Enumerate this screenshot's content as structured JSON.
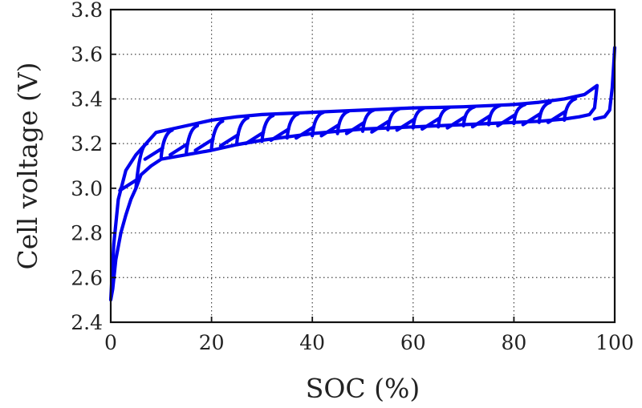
{
  "chart_data": {
    "type": "line",
    "xlabel": "SOC (%)",
    "ylabel": "Cell voltage (V)",
    "xlim": [
      0,
      100
    ],
    "ylim": [
      2.4,
      3.8
    ],
    "xticks": [
      "0",
      "20",
      "40",
      "60",
      "80",
      "100"
    ],
    "yticks": [
      "2.4",
      "2.6",
      "2.8",
      "3.0",
      "3.2",
      "3.4",
      "3.6",
      "3.8"
    ],
    "grid": true,
    "line_color": "#0000ee",
    "series": [
      {
        "description": "charge/discharge hysteresis trace (approximate)",
        "x": [
          0,
          0.6,
          1.5,
          3,
          5,
          7,
          9,
          12,
          16,
          20,
          25,
          30,
          35,
          40,
          45,
          50,
          55,
          60,
          65,
          70,
          75,
          80,
          85,
          90,
          94,
          96.5,
          96,
          95,
          93,
          90,
          85,
          80,
          75,
          70,
          65,
          60,
          55,
          50,
          45,
          40,
          35,
          30,
          25,
          20,
          15,
          10,
          8,
          6,
          5,
          4,
          3,
          2,
          1,
          0.4,
          0
        ],
        "y": [
          2.5,
          2.75,
          2.95,
          3.08,
          3.15,
          3.2,
          3.25,
          3.265,
          3.285,
          3.305,
          3.32,
          3.33,
          3.335,
          3.34,
          3.345,
          3.35,
          3.355,
          3.36,
          3.362,
          3.365,
          3.37,
          3.375,
          3.385,
          3.4,
          3.42,
          3.46,
          3.36,
          3.33,
          3.32,
          3.31,
          3.3,
          3.295,
          3.29,
          3.285,
          3.28,
          3.275,
          3.27,
          3.265,
          3.255,
          3.245,
          3.23,
          3.215,
          3.195,
          3.17,
          3.15,
          3.13,
          3.1,
          3.06,
          3.0,
          2.95,
          2.88,
          2.8,
          2.68,
          2.55,
          2.5
        ]
      },
      {
        "description": "charge to end trace",
        "x": [
          96,
          98,
          99,
          99.5,
          99.8,
          100
        ],
        "y": [
          3.31,
          3.32,
          3.35,
          3.45,
          3.55,
          3.63
        ]
      },
      {
        "description": "intermediate relaxation loops",
        "loops": [
          {
            "x0": 5,
            "y_low": 3.0,
            "y_high": 3.2
          },
          {
            "x0": 10,
            "y_low": 3.14,
            "y_high": 3.26
          },
          {
            "x0": 15,
            "y_low": 3.16,
            "y_high": 3.28
          },
          {
            "x0": 20,
            "y_low": 3.18,
            "y_high": 3.3
          },
          {
            "x0": 25,
            "y_low": 3.2,
            "y_high": 3.315
          },
          {
            "x0": 30,
            "y_low": 3.21,
            "y_high": 3.325
          },
          {
            "x0": 35,
            "y_low": 3.225,
            "y_high": 3.333
          },
          {
            "x0": 40,
            "y_low": 3.235,
            "y_high": 3.34
          },
          {
            "x0": 45,
            "y_low": 3.245,
            "y_high": 3.345
          },
          {
            "x0": 50,
            "y_low": 3.255,
            "y_high": 3.35
          },
          {
            "x0": 55,
            "y_low": 3.262,
            "y_high": 3.355
          },
          {
            "x0": 60,
            "y_low": 3.27,
            "y_high": 3.36
          },
          {
            "x0": 65,
            "y_low": 3.275,
            "y_high": 3.362
          },
          {
            "x0": 70,
            "y_low": 3.28,
            "y_high": 3.365
          },
          {
            "x0": 75,
            "y_low": 3.285,
            "y_high": 3.37
          },
          {
            "x0": 80,
            "y_low": 3.29,
            "y_high": 3.375
          },
          {
            "x0": 85,
            "y_low": 3.295,
            "y_high": 3.385
          },
          {
            "x0": 90,
            "y_low": 3.305,
            "y_high": 3.4
          }
        ]
      }
    ]
  }
}
